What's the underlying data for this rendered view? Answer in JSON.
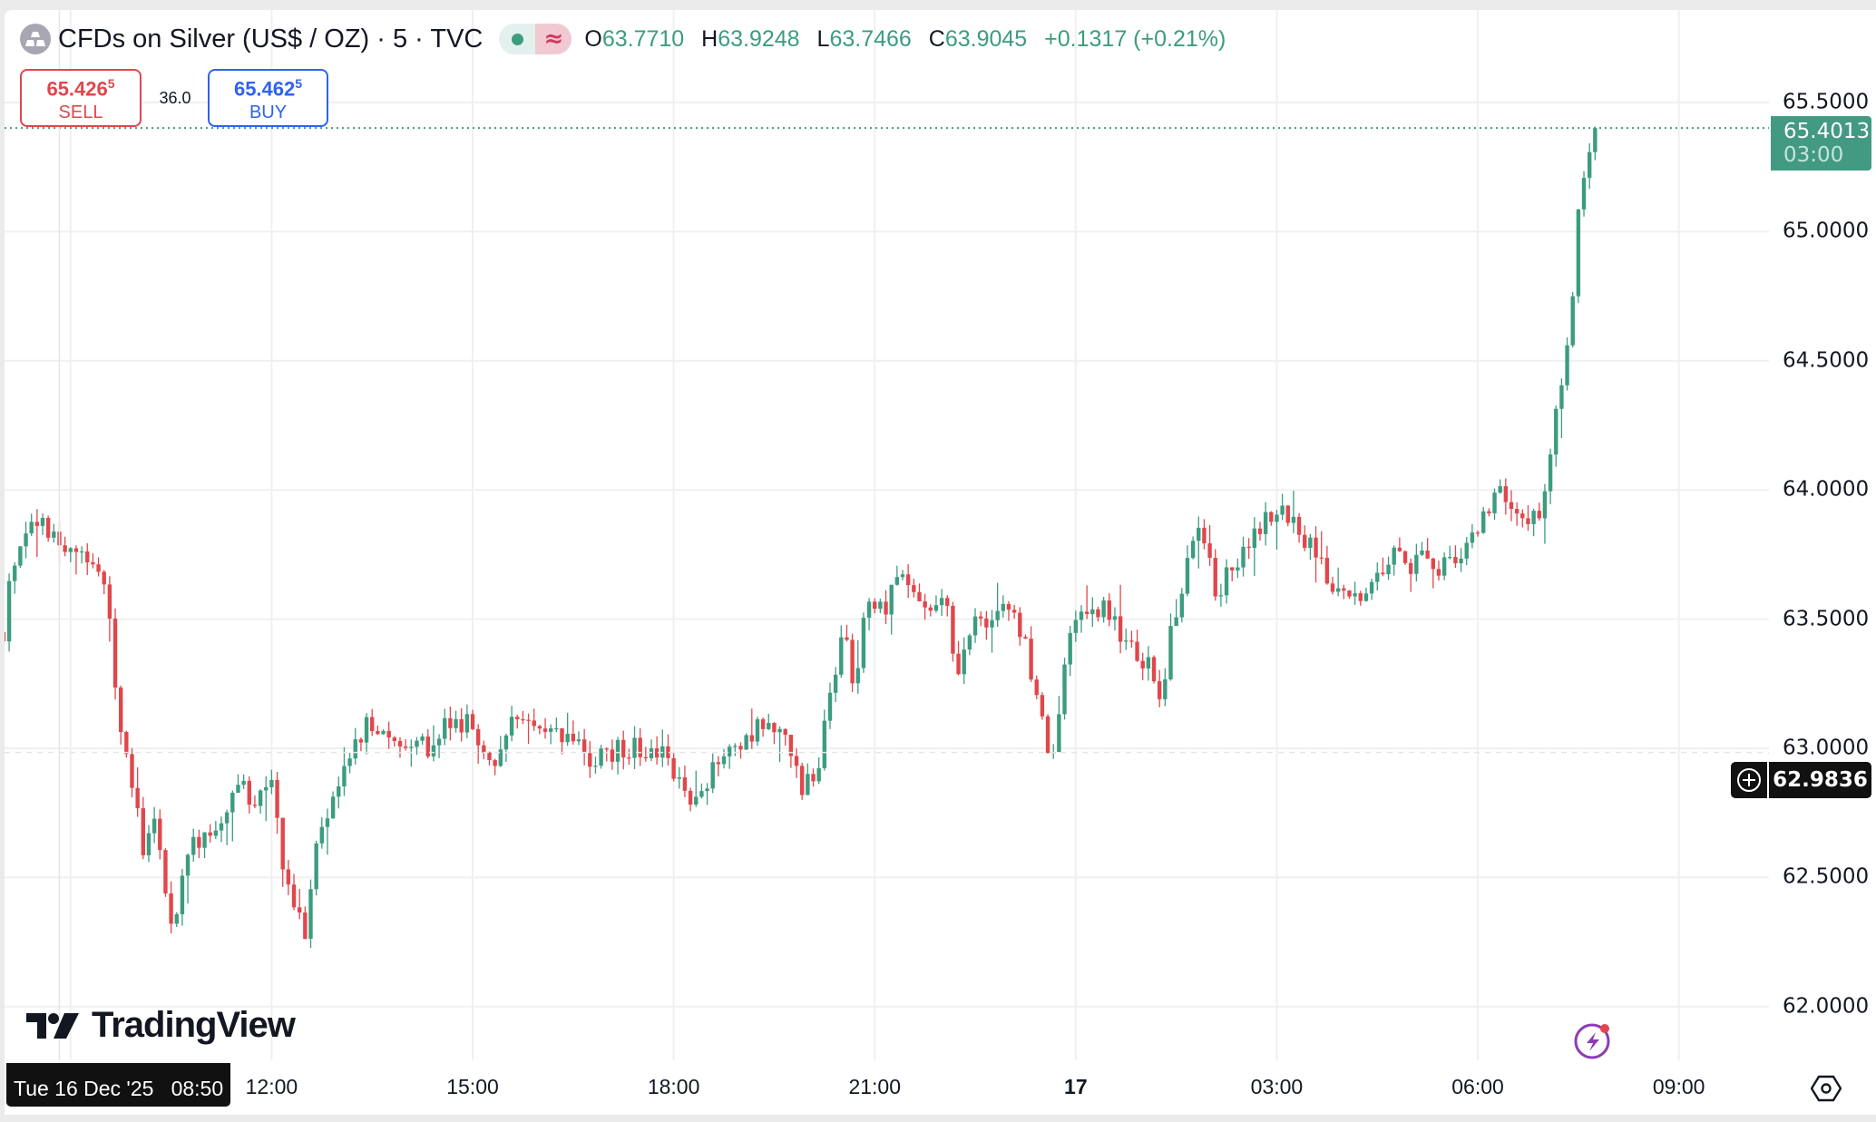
{
  "header": {
    "title": "CFDs on Silver (US$ / OZ) · 5 · TVC",
    "icon": "silver-bars-icon",
    "market_status_icon": "market-open-dot-icon",
    "data_delay_icon": "approx-wave-icon",
    "ohlc": {
      "o_label": "O",
      "o": "63.7710",
      "h_label": "H",
      "h": "63.9248",
      "l_label": "L",
      "l": "63.7466",
      "c_label": "C",
      "c": "63.9045",
      "change": "+0.1317 (+0.21%)"
    }
  },
  "trade": {
    "sell_price": "65.426",
    "sell_sup": "5",
    "sell_label": "SELL",
    "spread": "36.0",
    "buy_price": "65.462",
    "buy_sup": "5",
    "buy_label": "BUY"
  },
  "last_price": {
    "value": "65.4013",
    "countdown": "03:00"
  },
  "crosshair": {
    "price": "62.9836",
    "time": "Tue 16 Dec '25   08:50",
    "hour": 8.8333
  },
  "branding": {
    "logo_text": "TradingView"
  },
  "colors": {
    "up": "#3c9c80",
    "down": "#e0474c",
    "grid": "#f0f0f0",
    "last": "#439a82"
  },
  "chart_data": {
    "type": "candlestick",
    "title": "CFDs on Silver (US$ / OZ) · 5 · TVC",
    "interval_minutes": 5,
    "x_unit": "hours since 16 Dec 00:00",
    "xlim": [
      8.0,
      33.5
    ],
    "ylim": [
      61.85,
      65.6
    ],
    "grid": true,
    "y_ticks": [
      {
        "value": 65.5,
        "label": "65.5000"
      },
      {
        "value": 65.0,
        "label": "65.0000"
      },
      {
        "value": 64.5,
        "label": "64.5000"
      },
      {
        "value": 64.0,
        "label": "64.0000"
      },
      {
        "value": 63.5,
        "label": "63.5000"
      },
      {
        "value": 63.0,
        "label": "63.0000"
      },
      {
        "value": 62.5,
        "label": "62.5000"
      },
      {
        "value": 62.0,
        "label": "62.0000"
      }
    ],
    "x_ticks": [
      {
        "value": 9,
        "label": "",
        "bold": false
      },
      {
        "value": 12,
        "label": "12:00",
        "bold": false
      },
      {
        "value": 15,
        "label": "15:00",
        "bold": false
      },
      {
        "value": 18,
        "label": "18:00",
        "bold": false
      },
      {
        "value": 21,
        "label": "21:00",
        "bold": false
      },
      {
        "value": 24,
        "label": "17",
        "bold": true
      },
      {
        "value": 27,
        "label": "03:00",
        "bold": false
      },
      {
        "value": 30,
        "label": "06:00",
        "bold": false
      },
      {
        "value": 33,
        "label": "09:00",
        "bold": false
      }
    ],
    "close_path": [
      [
        8.0,
        63.45
      ],
      [
        8.12,
        63.7
      ],
      [
        8.39,
        63.9
      ],
      [
        8.84,
        63.8
      ],
      [
        9.2,
        63.75
      ],
      [
        9.55,
        63.6
      ],
      [
        9.73,
        63.1
      ],
      [
        9.91,
        62.9
      ],
      [
        10.09,
        62.6
      ],
      [
        10.27,
        62.7
      ],
      [
        10.54,
        62.3
      ],
      [
        10.71,
        62.6
      ],
      [
        10.98,
        62.65
      ],
      [
        11.25,
        62.7
      ],
      [
        11.52,
        62.85
      ],
      [
        11.79,
        62.8
      ],
      [
        12.0,
        62.9
      ],
      [
        12.14,
        62.6
      ],
      [
        12.32,
        62.4
      ],
      [
        12.5,
        62.3
      ],
      [
        12.63,
        62.6
      ],
      [
        12.86,
        62.75
      ],
      [
        13.13,
        62.95
      ],
      [
        13.39,
        63.08
      ],
      [
        13.84,
        63.05
      ],
      [
        14.29,
        63.0
      ],
      [
        14.64,
        63.1
      ],
      [
        15.0,
        63.1
      ],
      [
        15.27,
        62.95
      ],
      [
        15.63,
        63.1
      ],
      [
        15.89,
        63.12
      ],
      [
        16.34,
        63.05
      ],
      [
        16.79,
        62.95
      ],
      [
        17.14,
        63.0
      ],
      [
        17.59,
        63.0
      ],
      [
        17.95,
        62.95
      ],
      [
        18.27,
        62.8
      ],
      [
        18.66,
        62.95
      ],
      [
        19.02,
        63.0
      ],
      [
        19.29,
        63.1
      ],
      [
        19.64,
        63.05
      ],
      [
        19.91,
        62.85
      ],
      [
        20.18,
        62.95
      ],
      [
        20.36,
        63.25
      ],
      [
        20.54,
        63.5
      ],
      [
        20.71,
        63.2
      ],
      [
        20.89,
        63.6
      ],
      [
        21.16,
        63.55
      ],
      [
        21.34,
        63.7
      ],
      [
        21.61,
        63.6
      ],
      [
        21.88,
        63.55
      ],
      [
        22.05,
        63.6
      ],
      [
        22.23,
        63.3
      ],
      [
        22.41,
        63.45
      ],
      [
        22.68,
        63.5
      ],
      [
        23.04,
        63.55
      ],
      [
        23.3,
        63.35
      ],
      [
        23.57,
        63.0
      ],
      [
        23.66,
        62.95
      ],
      [
        23.84,
        63.35
      ],
      [
        24.11,
        63.55
      ],
      [
        24.38,
        63.55
      ],
      [
        24.64,
        63.45
      ],
      [
        24.91,
        63.35
      ],
      [
        25.18,
        63.3
      ],
      [
        25.27,
        63.2
      ],
      [
        25.45,
        63.5
      ],
      [
        25.71,
        63.75
      ],
      [
        25.89,
        63.85
      ],
      [
        26.07,
        63.6
      ],
      [
        26.34,
        63.7
      ],
      [
        26.61,
        63.8
      ],
      [
        26.88,
        63.9
      ],
      [
        27.14,
        63.9
      ],
      [
        27.41,
        63.8
      ],
      [
        27.59,
        63.75
      ],
      [
        27.86,
        63.6
      ],
      [
        28.13,
        63.58
      ],
      [
        28.39,
        63.6
      ],
      [
        28.66,
        63.75
      ],
      [
        28.93,
        63.7
      ],
      [
        29.2,
        63.75
      ],
      [
        29.46,
        63.7
      ],
      [
        29.73,
        63.75
      ],
      [
        30.0,
        63.85
      ],
      [
        30.27,
        64.0
      ],
      [
        30.54,
        63.95
      ],
      [
        30.8,
        63.9
      ],
      [
        30.98,
        63.95
      ],
      [
        31.13,
        64.2
      ],
      [
        31.25,
        64.45
      ],
      [
        31.38,
        64.6
      ],
      [
        31.48,
        65.1
      ],
      [
        31.61,
        65.2
      ],
      [
        31.75,
        65.4013
      ]
    ]
  }
}
